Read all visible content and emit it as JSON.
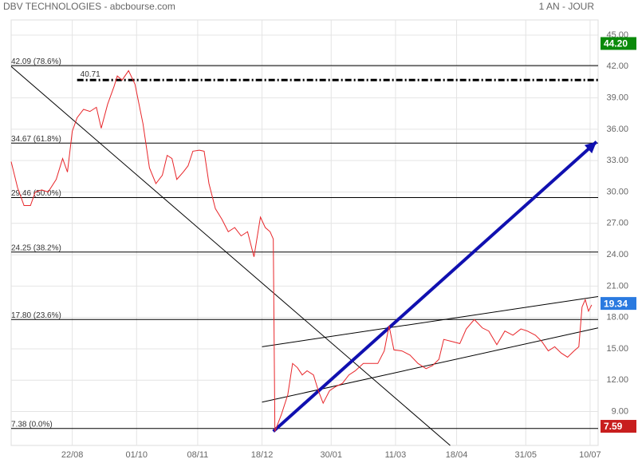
{
  "chart_data": {
    "type": "line",
    "title": "DBV TECHNOLOGIES - abcbourse.com",
    "subtitle": "1 AN - JOUR",
    "xlim": [
      0,
      365
    ],
    "ylim": [
      5.76,
      46.45
    ],
    "xticks": [
      {
        "value": 38,
        "label": "22/08"
      },
      {
        "value": 78,
        "label": "01/10"
      },
      {
        "value": 116,
        "label": "08/11"
      },
      {
        "value": 156,
        "label": "18/12"
      },
      {
        "value": 199,
        "label": "30/01"
      },
      {
        "value": 239,
        "label": "11/03"
      },
      {
        "value": 277,
        "label": "18/04"
      },
      {
        "value": 320,
        "label": "31/05"
      },
      {
        "value": 360,
        "label": "10/07"
      }
    ],
    "yticks": [
      {
        "value": 45,
        "label": "45.00"
      },
      {
        "value": 42,
        "label": "42.00"
      },
      {
        "value": 39,
        "label": "39.00"
      },
      {
        "value": 36,
        "label": "36.00"
      },
      {
        "value": 33,
        "label": "33.00"
      },
      {
        "value": 30,
        "label": "30.00"
      },
      {
        "value": 27,
        "label": "27.00"
      },
      {
        "value": 24,
        "label": "24.00"
      },
      {
        "value": 21,
        "label": "21.00"
      },
      {
        "value": 18,
        "label": "18.00"
      },
      {
        "value": 15,
        "label": "15.00"
      },
      {
        "value": 12,
        "label": "12.00"
      },
      {
        "value": 9,
        "label": "9.00"
      }
    ],
    "grid": true,
    "series": [
      {
        "color": "#e8262a",
        "x": [
          0,
          4,
          8,
          12,
          15,
          19,
          23,
          28,
          32,
          35,
          38,
          41,
          45,
          49,
          53,
          56,
          60,
          64,
          66,
          69,
          73,
          77,
          82,
          86,
          90,
          94,
          97,
          100,
          103,
          107,
          110,
          113,
          117,
          120,
          123,
          127,
          131,
          135,
          139,
          143,
          147,
          151,
          155,
          158,
          161,
          163,
          164,
          168,
          172,
          175,
          178,
          181,
          184,
          188,
          191,
          194,
          198,
          202,
          206,
          210,
          214,
          219,
          224,
          228,
          232,
          235,
          238,
          243,
          248,
          253,
          258,
          262,
          266,
          269,
          274,
          279,
          283,
          288,
          293,
          297,
          302,
          307,
          312,
          317,
          321,
          326,
          330,
          334,
          338,
          342,
          346,
          350,
          353,
          355,
          357,
          359,
          361
        ],
        "values": [
          32.9,
          30.4,
          28.7,
          28.7,
          30.0,
          30.2,
          30.0,
          31.2,
          33.2,
          31.9,
          35.8,
          37.1,
          37.9,
          37.7,
          38.1,
          36.1,
          38.4,
          40.1,
          41.1,
          40.7,
          41.6,
          40.3,
          36.5,
          32.3,
          30.8,
          31.6,
          33.5,
          33.2,
          31.2,
          31.9,
          32.5,
          33.9,
          34.0,
          33.9,
          30.8,
          28.4,
          27.4,
          26.2,
          26.6,
          25.8,
          26.2,
          23.8,
          27.6,
          26.6,
          26.2,
          25.5,
          7.1,
          8.7,
          10.6,
          13.6,
          13.2,
          12.5,
          12.9,
          12.5,
          11.0,
          9.8,
          11.0,
          11.4,
          11.7,
          12.5,
          12.9,
          13.6,
          13.6,
          13.6,
          14.8,
          17.2,
          14.9,
          14.8,
          14.4,
          13.6,
          13.1,
          13.4,
          14.0,
          15.9,
          15.7,
          15.5,
          16.9,
          17.8,
          17.0,
          16.7,
          15.4,
          16.7,
          16.3,
          16.9,
          16.7,
          16.3,
          15.7,
          14.8,
          15.2,
          14.6,
          14.2,
          14.8,
          15.2,
          19.0,
          19.7,
          18.6,
          19.2
        ]
      }
    ],
    "fib_levels": [
      {
        "value": 42.09,
        "label": "42.09  (78.6%)"
      },
      {
        "value": 34.67,
        "label": "34.67  (61.8%)"
      },
      {
        "value": 29.46,
        "label": "29.46  (50.0%)"
      },
      {
        "value": 24.25,
        "label": "24.25  (38.2%)"
      },
      {
        "value": 17.8,
        "label": "17.80  (23.6%)"
      },
      {
        "value": 7.38,
        "label": "7.38  (0.0%)"
      }
    ],
    "resistance": {
      "value": 40.71,
      "label": "40.71",
      "x": [
        41,
        365
      ]
    },
    "trendlines": [
      {
        "x": [
          0,
          273
        ],
        "y": [
          42.0,
          5.76
        ],
        "color": "#000"
      },
      {
        "x": [
          156,
          365
        ],
        "y": [
          15.2,
          20.0
        ],
        "color": "#000"
      },
      {
        "x": [
          156,
          365
        ],
        "y": [
          9.9,
          17.0
        ],
        "color": "#000"
      },
      {
        "x": [
          163,
          364
        ],
        "y": [
          7.1,
          34.8
        ],
        "color": "#1010b0"
      }
    ],
    "price_tags": [
      {
        "value": 44.2,
        "label": "44.20",
        "color": "#0a8a0a"
      },
      {
        "value": 19.34,
        "label": "19.34",
        "color": "#2a7ae0"
      },
      {
        "value": 7.59,
        "label": "7.59",
        "color": "#c81e1e"
      }
    ]
  }
}
